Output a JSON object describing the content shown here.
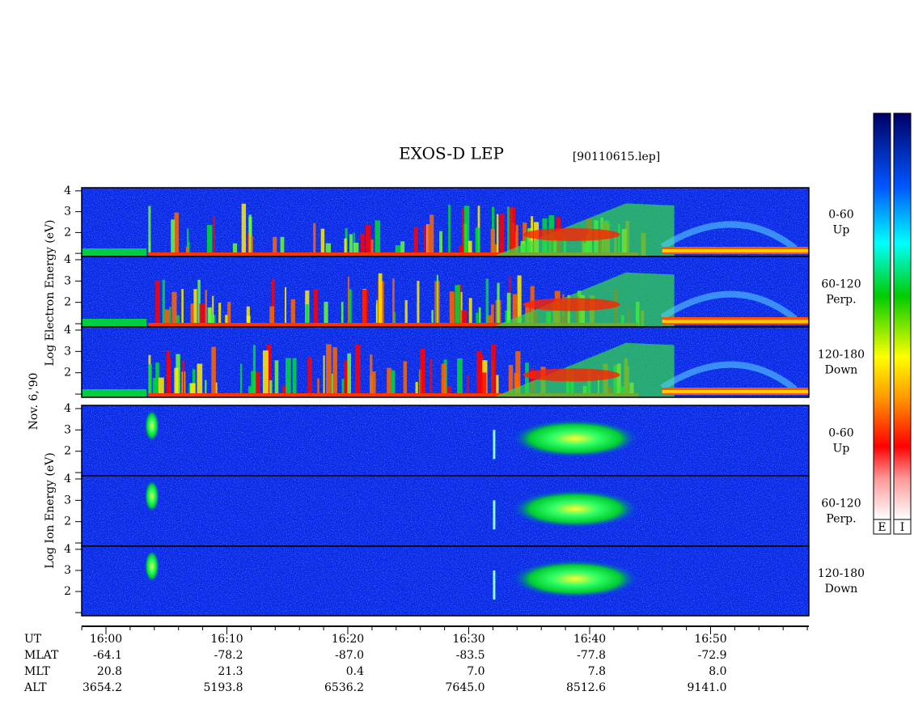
{
  "header": {
    "title": "EXOS-D LEP",
    "file": "[90110615.lep]"
  },
  "left_labels": {
    "electron": "Log Electron Energy (eV)",
    "date": "Nov. 6,'90",
    "ion": "Log Ion Energy (eV)"
  },
  "panels": [
    {
      "group": "electron",
      "label": "0-60",
      "sublabel": "Up",
      "yticks": [
        "4",
        "3",
        "2"
      ]
    },
    {
      "group": "electron",
      "label": "60-120",
      "sublabel": "Perp.",
      "yticks": [
        "4",
        "3",
        "2"
      ]
    },
    {
      "group": "electron",
      "label": "120-180",
      "sublabel": "Down",
      "yticks": [
        "4",
        "3",
        "2"
      ]
    },
    {
      "group": "ion",
      "label": "0-60",
      "sublabel": "Up",
      "yticks": [
        "4",
        "3",
        "2"
      ]
    },
    {
      "group": "ion",
      "label": "60-120",
      "sublabel": "Perp.",
      "yticks": [
        "4",
        "3",
        "2"
      ]
    },
    {
      "group": "ion",
      "label": "120-180",
      "sublabel": "Down",
      "yticks": [
        "4",
        "3",
        "2"
      ]
    }
  ],
  "time_axis": {
    "name": "UT",
    "ticks": [
      "16:00",
      "16:10",
      "16:20",
      "16:30",
      "16:40",
      "16:50"
    ]
  },
  "ephemeris": [
    {
      "name": "MLAT",
      "values": [
        "-64.1",
        "-78.2",
        "-87.0",
        "-83.5",
        "-77.8",
        "-72.9"
      ]
    },
    {
      "name": "MLT",
      "values": [
        "20.8",
        "21.3",
        "0.4",
        "7.0",
        "7.8",
        "8.0"
      ]
    },
    {
      "name": "ALT",
      "values": [
        "3654.2",
        "5193.8",
        "6536.2",
        "7645.0",
        "8512.6",
        "9141.0"
      ]
    }
  ],
  "colorbars": [
    "E",
    "I"
  ]
}
